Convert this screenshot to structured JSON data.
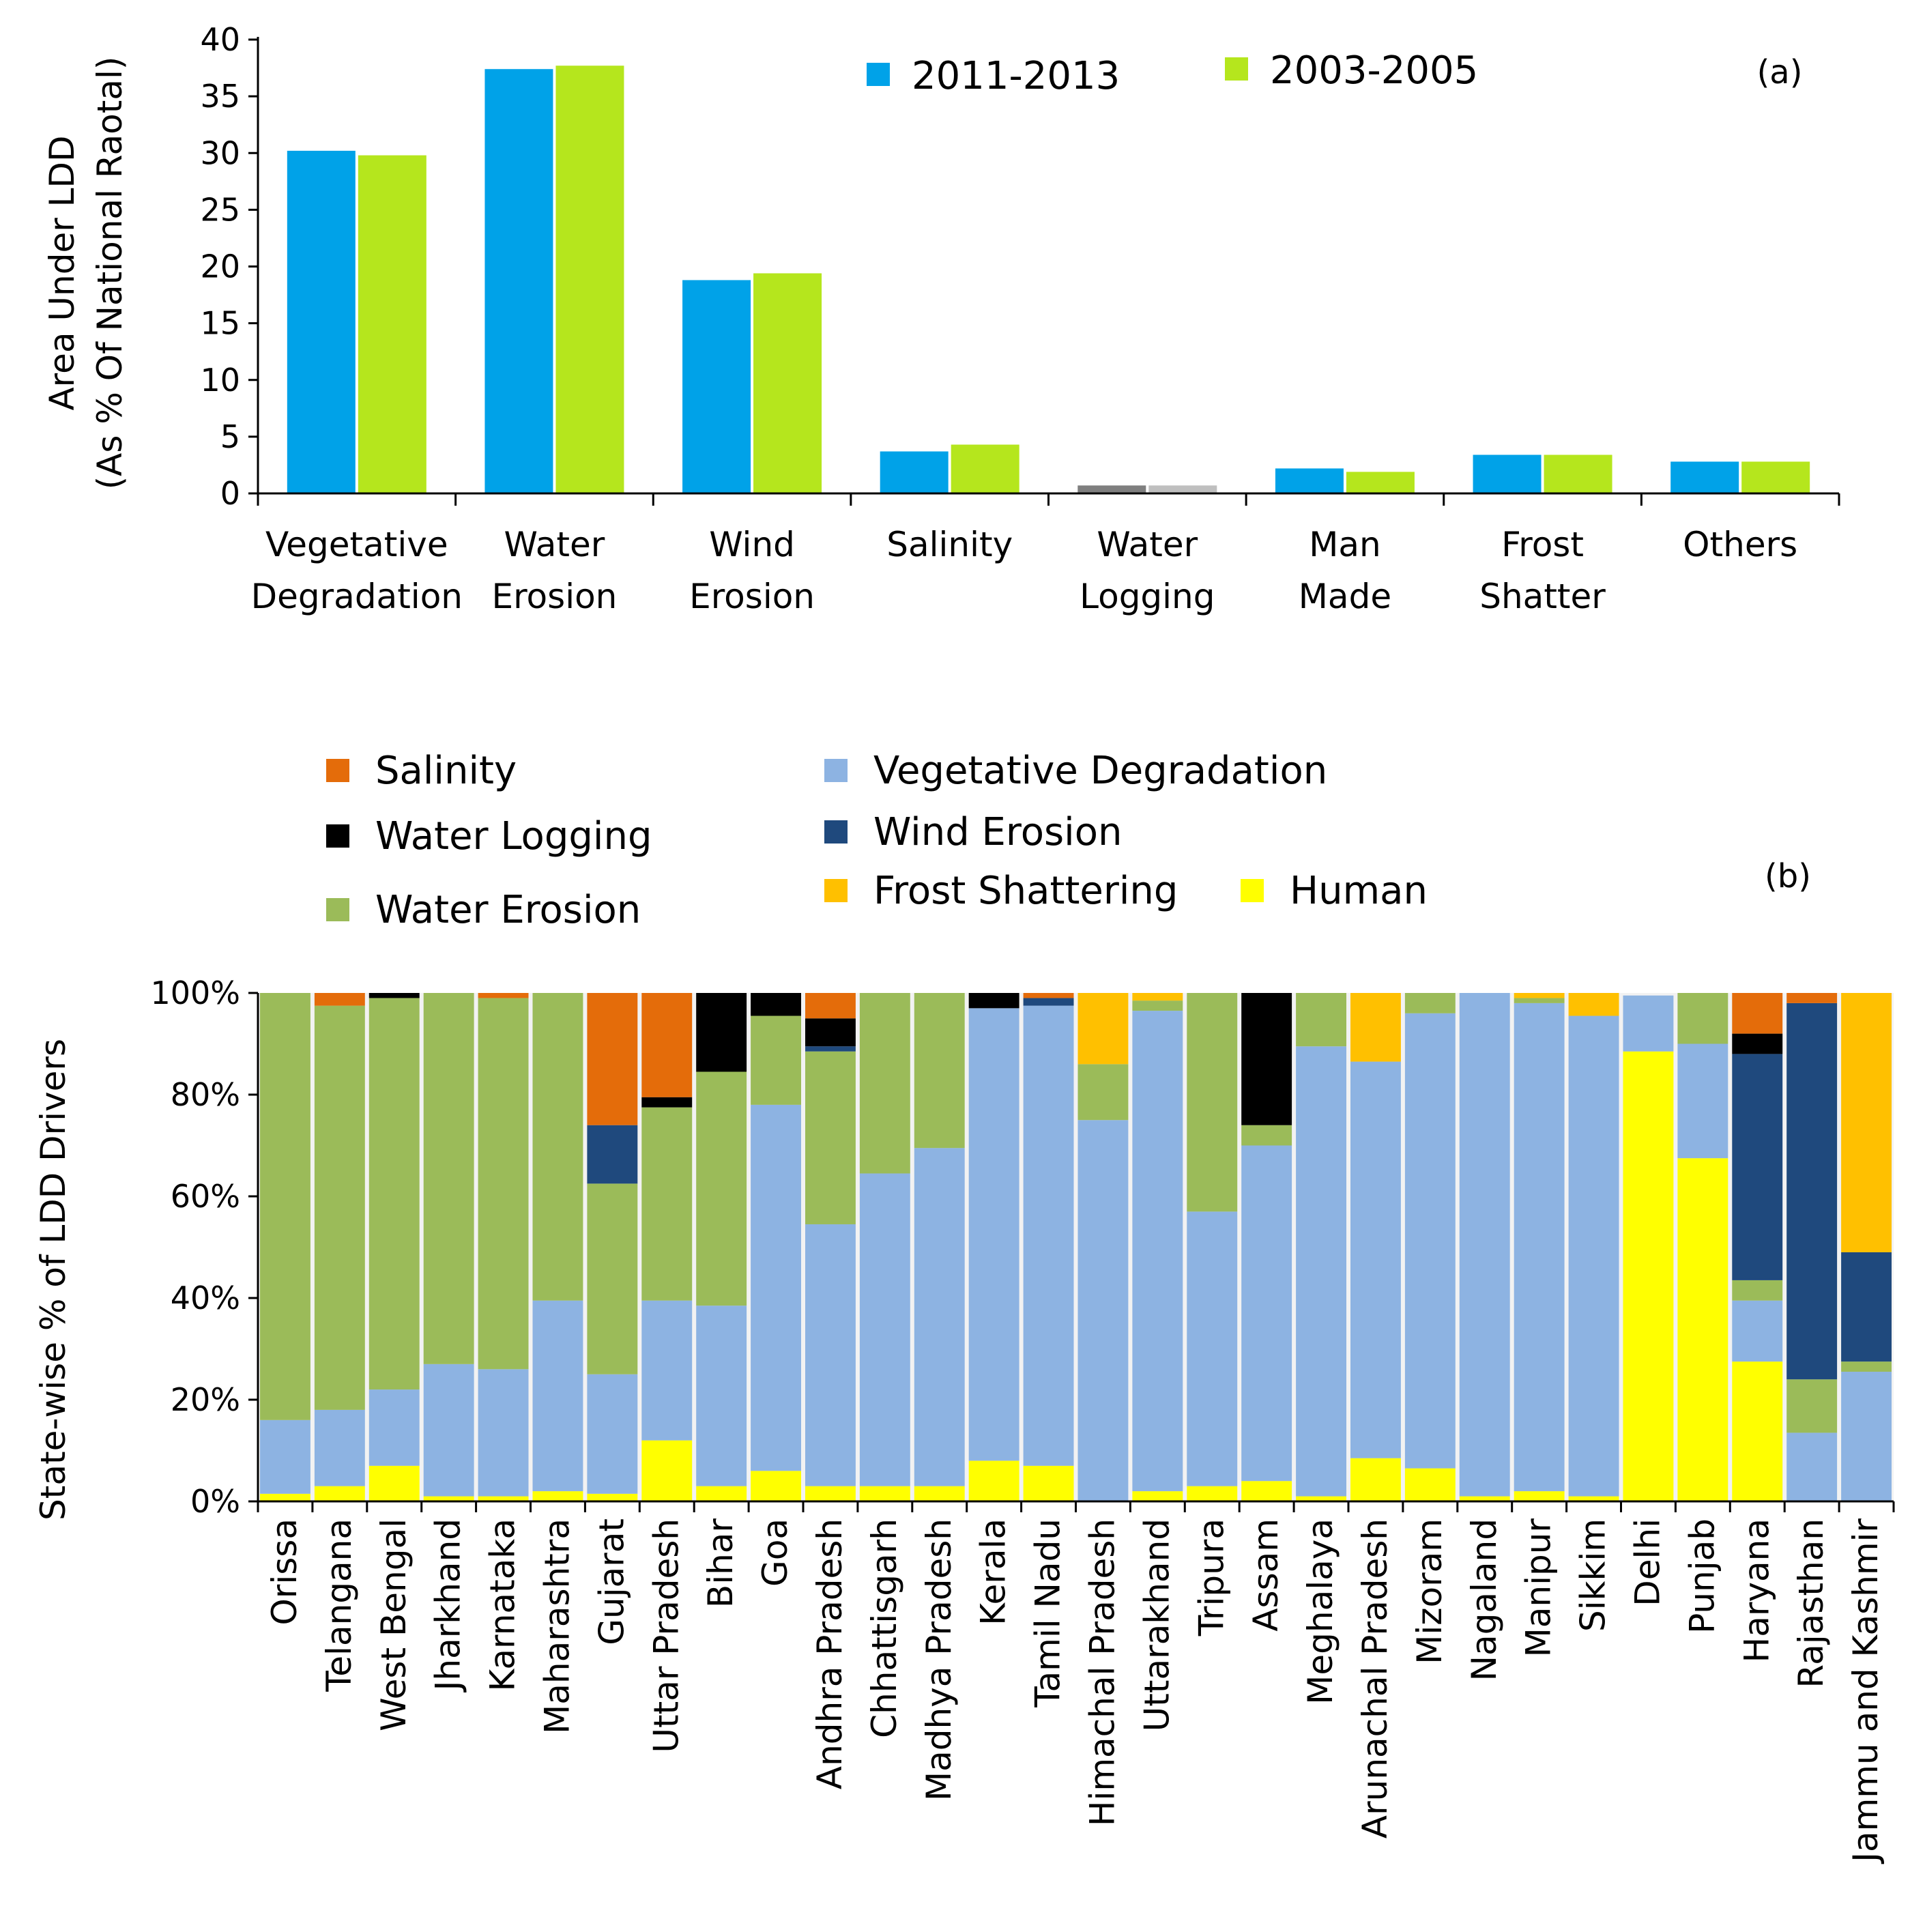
{
  "chart_data": [
    {
      "type": "bar",
      "panel_label": "(a)",
      "ylabel_lines": [
        "Area Under LDD",
        "(As % Of National Raotal)"
      ],
      "ylim": [
        0,
        40
      ],
      "yticks": [
        "0",
        "5",
        "10",
        "15",
        "20",
        "25",
        "30",
        "35",
        "40"
      ],
      "categories": [
        [
          "Vegetative",
          "Degradation"
        ],
        [
          "Water",
          "Erosion"
        ],
        [
          "Wind",
          "Erosion"
        ],
        [
          "Salinity"
        ],
        [
          "Water",
          "Logging"
        ],
        [
          "Man",
          "Made"
        ],
        [
          "Frost",
          "Shatter"
        ],
        [
          "Others"
        ]
      ],
      "series": [
        {
          "name": "2011-2013",
          "color": "#00a2e8",
          "values": [
            30.2,
            37.4,
            18.8,
            3.7,
            0.7,
            2.2,
            3.4,
            2.8
          ]
        },
        {
          "name": "2003-2005",
          "color": "#b5e61d",
          "values": [
            29.8,
            37.7,
            19.4,
            4.3,
            0.7,
            1.9,
            3.4,
            2.8
          ]
        }
      ],
      "special_colors": {
        "Water Logging": [
          "#7f7f7f",
          "#bfbfbf"
        ]
      },
      "legend_position": "top"
    },
    {
      "type": "bar",
      "stacked": true,
      "panel_label": "(b)",
      "ylabel": "State-wise % of  LDD  Drivers",
      "ylim": [
        0,
        100
      ],
      "yticks": [
        "0%",
        "20%",
        "40%",
        "60%",
        "80%",
        "100%"
      ],
      "legend": [
        {
          "name": "Salinity",
          "color": "#e46c0a"
        },
        {
          "name": "Water Logging",
          "color": "#000000"
        },
        {
          "name": "Water Erosion",
          "color": "#9bbb59"
        },
        {
          "name": "Vegetative Degradation",
          "color": "#8db3e2"
        },
        {
          "name": "Wind Erosion",
          "color": "#1f497d"
        },
        {
          "name": "Frost Shattering",
          "color": "#ffc000"
        },
        {
          "name": "Human",
          "color": "#ffff00"
        }
      ],
      "stack_order": [
        "Human",
        "Vegetative Degradation",
        "Water Erosion",
        "Wind Erosion",
        "Water Logging",
        "Salinity",
        "Frost Shattering"
      ],
      "categories": [
        "Orissa",
        "Telangana",
        "West Bengal",
        "Jharkhand",
        "Karnataka",
        "Maharashtra",
        "Gujarat",
        "Uttar Pradesh",
        "Bihar",
        "Goa",
        "Andhra Pradesh",
        "Chhattisgarh",
        "Madhya Pradesh",
        "Kerala",
        "Tamil Nadu",
        "Himachal Pradesh",
        "Uttarakhand",
        "Tripura",
        "Assam",
        "Meghalaya",
        "Arunachal Pradesh",
        "Mizoram",
        "Nagaland",
        "Manipur",
        "Sikkim",
        "Delhi",
        "Punjab",
        "Haryana",
        "Rajasthan",
        "Jammu and Kashmir"
      ],
      "series": [
        {
          "name": "Human",
          "values": [
            1.5,
            3,
            7,
            1,
            1,
            2,
            1.5,
            12,
            3,
            6,
            3,
            3,
            3,
            8,
            7,
            0,
            2,
            3,
            4,
            1,
            8.5,
            6.5,
            1,
            2,
            1,
            88.5,
            67.5,
            27.5,
            0,
            0
          ]
        },
        {
          "name": "Vegetative Degradation",
          "values": [
            14.5,
            15,
            15,
            26,
            25,
            37.5,
            23.5,
            27.5,
            35.5,
            72,
            51.5,
            61.5,
            66.5,
            89,
            90.5,
            75,
            94.5,
            54,
            66,
            88.5,
            78,
            89.5,
            99,
            96,
            94.5,
            11,
            22.5,
            12,
            13.5,
            25.5
          ]
        },
        {
          "name": "Water Erosion",
          "values": [
            84,
            79.5,
            77,
            73,
            73,
            60.5,
            37.5,
            38,
            46,
            17.5,
            34,
            35.5,
            30.5,
            0,
            0,
            11,
            2,
            43,
            4,
            10.5,
            0,
            4,
            0,
            1,
            0,
            0,
            10,
            4,
            10.5,
            2
          ]
        },
        {
          "name": "Wind Erosion",
          "values": [
            0,
            0,
            0,
            0,
            0,
            0,
            11.5,
            0,
            0,
            0,
            1,
            0,
            0,
            0,
            1.5,
            0,
            0,
            0,
            0,
            0,
            0,
            0,
            0,
            0,
            0,
            0,
            0,
            44.5,
            74,
            21.5
          ]
        },
        {
          "name": "Water Logging",
          "values": [
            0,
            0,
            1,
            0,
            0,
            0,
            0,
            2,
            15.5,
            4.5,
            5.5,
            0,
            0,
            3,
            0,
            0,
            0,
            0,
            26,
            0,
            0,
            0,
            0,
            0,
            0,
            0,
            0,
            4,
            0,
            0
          ]
        },
        {
          "name": "Salinity",
          "values": [
            0,
            2.5,
            0,
            0,
            1,
            0,
            26,
            20.5,
            0,
            0,
            5,
            0,
            0,
            0,
            1,
            0,
            0,
            0,
            0,
            0,
            0,
            0,
            0,
            0,
            0,
            0,
            0,
            8,
            2,
            0
          ]
        },
        {
          "name": "Frost Shattering",
          "values": [
            0,
            0,
            0,
            0,
            0,
            0,
            0,
            0,
            0,
            0,
            0,
            0,
            0,
            0,
            0,
            14,
            1.5,
            0,
            0,
            0,
            13.5,
            0,
            0,
            1,
            4.5,
            0,
            0,
            0,
            0,
            51
          ]
        }
      ]
    }
  ]
}
